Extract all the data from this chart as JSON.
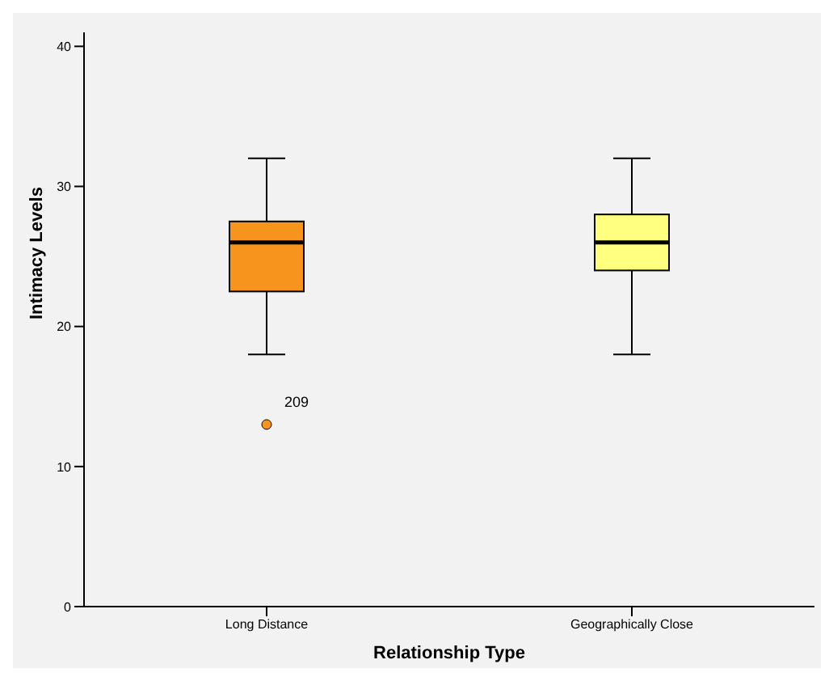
{
  "chart_data": {
    "type": "box",
    "xlabel": "Relationship Type",
    "ylabel": "Intimacy Levels",
    "categories": [
      "Long Distance",
      "Geographically Close"
    ],
    "boxes": [
      {
        "low": 18,
        "q1": 22.5,
        "median": 26,
        "q3": 27.5,
        "high": 32,
        "outliers": [
          13
        ]
      },
      {
        "low": 18,
        "q1": 24,
        "median": 26,
        "q3": 28,
        "high": 32
      }
    ],
    "colors": [
      "#f7941d",
      "#ffff80"
    ],
    "ylim": [
      0,
      41
    ],
    "yticks": [
      0,
      10,
      20,
      30,
      40
    ],
    "annotations": [
      "209"
    ],
    "grid": false,
    "legend": false
  }
}
